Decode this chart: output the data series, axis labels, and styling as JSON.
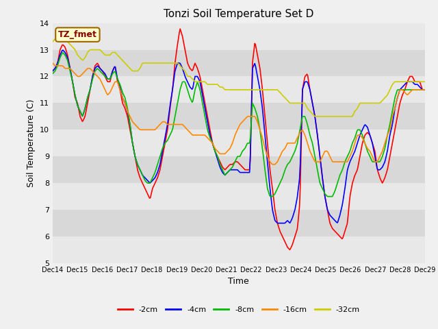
{
  "title": "Tonzi Soil Temperature Set D",
  "xlabel": "Time",
  "ylabel": "Soil Temperature (C)",
  "ylim": [
    5.0,
    14.0
  ],
  "yticks": [
    5.0,
    6.0,
    7.0,
    8.0,
    9.0,
    10.0,
    11.0,
    12.0,
    13.0,
    14.0
  ],
  "fig_bg_color": "#f0f0f0",
  "plot_bg_color": "#d8d8d8",
  "band_color": "#e8e8e8",
  "legend_label": "TZ_fmet",
  "series_labels": [
    "-2cm",
    "-4cm",
    "-8cm",
    "-16cm",
    "-32cm"
  ],
  "series_colors": [
    "#ff0000",
    "#0000ff",
    "#00bb00",
    "#ff8800",
    "#cccc00"
  ],
  "line_width": 1.2,
  "x_start": 14,
  "x_end": 29,
  "xtick_positions": [
    14,
    15,
    16,
    17,
    18,
    19,
    20,
    21,
    22,
    23,
    24,
    25,
    26,
    27,
    28,
    29
  ],
  "xtick_labels": [
    "Dec 14",
    "Dec 15",
    "Dec 16",
    "Dec 17",
    "Dec 18",
    "Dec 19",
    "Dec 20",
    "Dec 21",
    "Dec 22",
    "Dec 23",
    "Dec 24",
    "Dec 25",
    "Dec 26",
    "Dec 27",
    "Dec 28",
    "Dec 29"
  ]
}
